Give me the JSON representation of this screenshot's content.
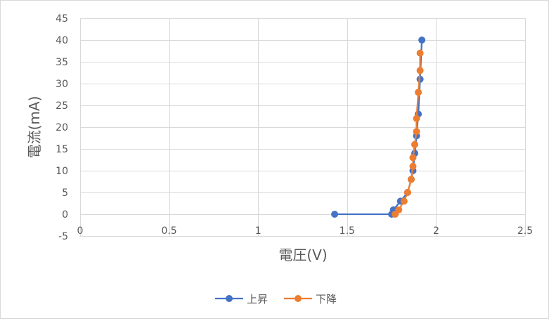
{
  "chart_data": {
    "type": "scatter",
    "title": "",
    "xlabel": "電圧(V)",
    "ylabel": "電流(mA)",
    "xlim": [
      0,
      2.5
    ],
    "ylim": [
      -5,
      45
    ],
    "xticks": [
      0,
      0.5,
      1,
      1.5,
      2,
      2.5
    ],
    "xtick_labels": [
      "0",
      "0.5",
      "1",
      "1.5",
      "2",
      "2.5"
    ],
    "yticks": [
      -5,
      0,
      5,
      10,
      15,
      20,
      25,
      30,
      35,
      40,
      45
    ],
    "ytick_labels": [
      "-5",
      "0",
      "5",
      "10",
      "15",
      "20",
      "25",
      "30",
      "35",
      "40",
      "45"
    ],
    "grid": true,
    "legend_position": "bottom",
    "series": [
      {
        "name": "上昇",
        "color": "#4472C4",
        "x": [
          1.43,
          1.75,
          1.76,
          1.8,
          1.84,
          1.86,
          1.87,
          1.88,
          1.89,
          1.9,
          1.91,
          1.92
        ],
        "y": [
          0,
          0,
          1,
          3,
          5,
          8,
          10,
          14,
          18,
          23,
          31,
          40
        ]
      },
      {
        "name": "下降",
        "color": "#ED7D31",
        "x": [
          1.91,
          1.91,
          1.9,
          1.89,
          1.89,
          1.88,
          1.87,
          1.87,
          1.86,
          1.84,
          1.82,
          1.79,
          1.77
        ],
        "y": [
          37,
          33,
          28,
          22,
          19,
          16,
          13,
          11,
          8,
          5,
          3,
          1,
          0
        ]
      }
    ]
  }
}
